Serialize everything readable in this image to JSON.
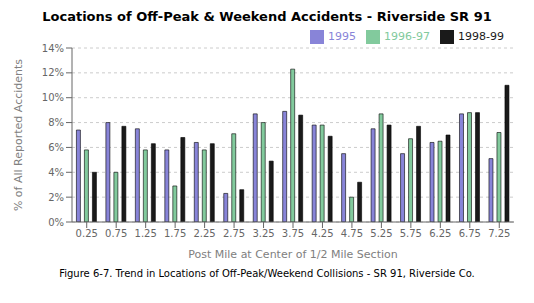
{
  "chart_data": {
    "type": "bar",
    "title": "Locations of Off-Peak & Weekend Accidents - Riverside SR 91",
    "xlabel": "Post Mile at Center of 1/2 Mile Section",
    "ylabel": "% of All Reported Accidents",
    "caption": "Figure 6-7. Trend in Locations of Off-Peak/Weekend Collisions - SR 91, Riverside Co.",
    "categories": [
      "0.25",
      "0.75",
      "1.25",
      "1.75",
      "2.25",
      "2.75",
      "3.25",
      "3.75",
      "4.25",
      "4.75",
      "5.25",
      "5.75",
      "6.25",
      "6.75",
      "7.25"
    ],
    "series": [
      {
        "name": "1995",
        "color": "#8884d8",
        "values": [
          7.4,
          8.0,
          7.5,
          5.8,
          6.4,
          2.3,
          8.7,
          8.9,
          7.8,
          5.5,
          7.5,
          5.5,
          6.4,
          8.7,
          5.1
        ]
      },
      {
        "name": "1996-97",
        "color": "#82ca9d",
        "values": [
          5.8,
          4.0,
          5.8,
          2.9,
          5.8,
          7.1,
          8.0,
          12.3,
          7.8,
          2.0,
          8.7,
          6.7,
          6.5,
          8.8,
          7.2
        ]
      },
      {
        "name": "1998-99",
        "color": "#1a1a1a",
        "values": [
          4.0,
          7.7,
          6.3,
          6.8,
          6.3,
          2.6,
          4.9,
          8.6,
          6.9,
          3.2,
          7.8,
          7.7,
          7.0,
          8.8,
          11.0
        ]
      }
    ],
    "ylim": [
      0,
      14
    ],
    "yticks": [
      {
        "value": 0,
        "label": "0%"
      },
      {
        "value": 2,
        "label": "2%"
      },
      {
        "value": 4,
        "label": "4%"
      },
      {
        "value": 6,
        "label": "6%"
      },
      {
        "value": 8,
        "label": "8%"
      },
      {
        "value": 10,
        "label": "10%"
      },
      {
        "value": 12,
        "label": "12%"
      },
      {
        "value": 14,
        "label": "14%"
      }
    ],
    "grid": true,
    "legend": "upper right"
  }
}
